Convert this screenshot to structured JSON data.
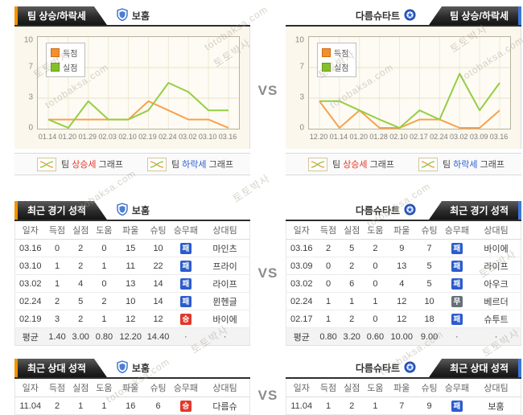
{
  "vs_label": "VS",
  "watermarks": [
    "토토박사",
    "totobaksa.com"
  ],
  "teams": {
    "home": {
      "name": "보훔"
    },
    "away": {
      "name": "다름슈타트"
    }
  },
  "colors": {
    "accent_orange": "#f39200",
    "accent_blue": "#3d77d9",
    "scored_line": "#f7a14f",
    "conceded_line": "#94ce44",
    "win_badge": "#df382b",
    "draw_badge": "#67707a",
    "loss_badge": "#2c5ccd",
    "rise_text": "#e0382a",
    "fall_text": "#2d5ed0"
  },
  "trend": {
    "title": "팀 상승/하락세",
    "legend": {
      "scored": "득점",
      "conceded": "실점"
    },
    "footer": {
      "rise": {
        "pre": "팀 ",
        "word": "상승세",
        "post": " 그래프"
      },
      "fall": {
        "pre": "팀 ",
        "word": "하락세",
        "post": " 그래프"
      }
    }
  },
  "chart_data": [
    {
      "type": "line",
      "title": "팀 상승/하락세 - 보훔",
      "x": [
        "01.14",
        "01.20",
        "01.29",
        "02.03",
        "02.10",
        "02.19",
        "02.24",
        "03.02",
        "03.10",
        "03.16"
      ],
      "series": [
        {
          "name": "득점",
          "color": "#f7a14f",
          "values": [
            1,
            1,
            1,
            1,
            1,
            3,
            2,
            1,
            1,
            0
          ]
        },
        {
          "name": "실점",
          "color": "#94ce44",
          "values": [
            1,
            0,
            3,
            1,
            1,
            2,
            5,
            4,
            2,
            2
          ]
        }
      ],
      "ylim": [
        0,
        10
      ],
      "yticks": [
        0,
        3,
        7,
        10
      ],
      "grid": true,
      "legend_position": "top-left"
    },
    {
      "type": "line",
      "title": "팀 상승/하락세 - 다름슈타트",
      "x": [
        "12.20",
        "01.14",
        "01.20",
        "01.28",
        "02.10",
        "02.17",
        "02.24",
        "03.02",
        "03.09",
        "03.16"
      ],
      "series": [
        {
          "name": "득점",
          "color": "#f7a14f",
          "values": [
            3,
            0,
            2,
            0,
            0,
            1,
            1,
            0,
            0,
            2
          ]
        },
        {
          "name": "실점",
          "color": "#94ce44",
          "values": [
            3,
            3,
            2,
            1,
            0,
            2,
            1,
            6,
            2,
            5
          ]
        }
      ],
      "ylim": [
        0,
        10
      ],
      "yticks": [
        0,
        3,
        7,
        10
      ],
      "grid": true,
      "legend_position": "top-left"
    }
  ],
  "tables": {
    "columns": [
      "일자",
      "득점",
      "실점",
      "도움",
      "파울",
      "슈팅",
      "승무패",
      "상대팀"
    ],
    "avg_label": "평균",
    "dot": "·",
    "recent": {
      "title": "최근 경기 성적",
      "home": {
        "rows": [
          {
            "date": "03.16",
            "cells": [
              "0",
              "2",
              "0",
              "15",
              "10"
            ],
            "result": "loss",
            "result_label": "패",
            "opponent": "마인츠"
          },
          {
            "date": "03.10",
            "cells": [
              "1",
              "2",
              "1",
              "11",
              "22"
            ],
            "result": "loss",
            "result_label": "패",
            "opponent": "프라이"
          },
          {
            "date": "03.02",
            "cells": [
              "1",
              "4",
              "0",
              "13",
              "14"
            ],
            "result": "loss",
            "result_label": "패",
            "opponent": "라이프"
          },
          {
            "date": "02.24",
            "cells": [
              "2",
              "5",
              "2",
              "10",
              "14"
            ],
            "result": "loss",
            "result_label": "패",
            "opponent": "뮌헨글"
          },
          {
            "date": "02.19",
            "cells": [
              "3",
              "2",
              "1",
              "12",
              "12"
            ],
            "result": "win",
            "result_label": "승",
            "opponent": "바이에"
          }
        ],
        "avg": [
          "1.40",
          "3.00",
          "0.80",
          "12.20",
          "14.40"
        ]
      },
      "away": {
        "rows": [
          {
            "date": "03.16",
            "cells": [
              "2",
              "5",
              "2",
              "9",
              "7"
            ],
            "result": "loss",
            "result_label": "패",
            "opponent": "바이에"
          },
          {
            "date": "03.09",
            "cells": [
              "0",
              "2",
              "0",
              "13",
              "5"
            ],
            "result": "loss",
            "result_label": "패",
            "opponent": "라이프"
          },
          {
            "date": "03.02",
            "cells": [
              "0",
              "6",
              "0",
              "4",
              "5"
            ],
            "result": "loss",
            "result_label": "패",
            "opponent": "아우크"
          },
          {
            "date": "02.24",
            "cells": [
              "1",
              "1",
              "1",
              "12",
              "10"
            ],
            "result": "draw",
            "result_label": "무",
            "opponent": "베르더"
          },
          {
            "date": "02.17",
            "cells": [
              "1",
              "2",
              "0",
              "12",
              "18"
            ],
            "result": "loss",
            "result_label": "패",
            "opponent": "슈투트"
          }
        ],
        "avg": [
          "0.80",
          "3.20",
          "0.60",
          "10.00",
          "9.00"
        ]
      }
    },
    "h2h": {
      "title": "최근 상대 성적",
      "home": {
        "rows": [
          {
            "date": "11.04",
            "cells": [
              "2",
              "1",
              "1",
              "16",
              "6"
            ],
            "result": "win",
            "result_label": "승",
            "opponent": "다름슈"
          }
        ],
        "avg": [
          "2.00",
          "1.00",
          "1.00",
          "16.00",
          "6.00"
        ]
      },
      "away": {
        "rows": [
          {
            "date": "11.04",
            "cells": [
              "1",
              "2",
              "1",
              "7",
              "9"
            ],
            "result": "loss",
            "result_label": "패",
            "opponent": "보훔"
          }
        ],
        "avg": [
          "1.00",
          "2.00",
          "1.00",
          "7.00",
          "9.00"
        ]
      }
    }
  }
}
